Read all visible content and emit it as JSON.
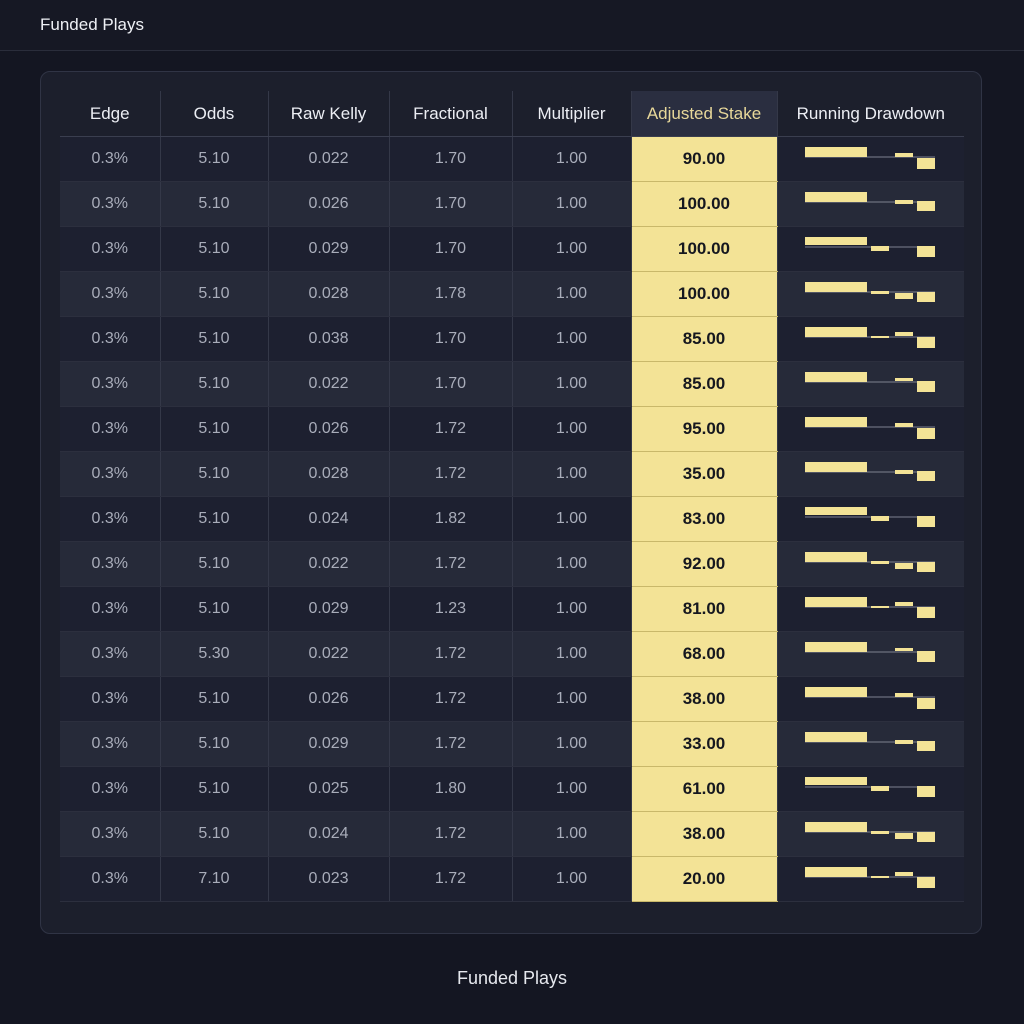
{
  "header": {
    "title": "Funded Plays"
  },
  "footer": {
    "caption": "Funded Plays"
  },
  "colors": {
    "accent": "#f3e396",
    "background": "#141622",
    "panel": "#1c1f2c"
  },
  "table": {
    "columns": [
      "Edge",
      "Odds",
      "Raw Kelly",
      "Fractional",
      "Multiplier",
      "Adjusted Stake",
      "Running Drawdown"
    ],
    "rows": [
      {
        "edge": "0.3%",
        "odds": "5.10",
        "raw_kelly": "0.022",
        "fractional": "1.70",
        "multiplier": "1.00",
        "stake": "90.00"
      },
      {
        "edge": "0.3%",
        "odds": "5.10",
        "raw_kelly": "0.026",
        "fractional": "1.70",
        "multiplier": "1.00",
        "stake": "100.00"
      },
      {
        "edge": "0.3%",
        "odds": "5.10",
        "raw_kelly": "0.029",
        "fractional": "1.70",
        "multiplier": "1.00",
        "stake": "100.00"
      },
      {
        "edge": "0.3%",
        "odds": "5.10",
        "raw_kelly": "0.028",
        "fractional": "1.78",
        "multiplier": "1.00",
        "stake": "100.00"
      },
      {
        "edge": "0.3%",
        "odds": "5.10",
        "raw_kelly": "0.038",
        "fractional": "1.70",
        "multiplier": "1.00",
        "stake": "85.00"
      },
      {
        "edge": "0.3%",
        "odds": "5.10",
        "raw_kelly": "0.022",
        "fractional": "1.70",
        "multiplier": "1.00",
        "stake": "85.00"
      },
      {
        "edge": "0.3%",
        "odds": "5.10",
        "raw_kelly": "0.026",
        "fractional": "1.72",
        "multiplier": "1.00",
        "stake": "95.00"
      },
      {
        "edge": "0.3%",
        "odds": "5.10",
        "raw_kelly": "0.028",
        "fractional": "1.72",
        "multiplier": "1.00",
        "stake": "35.00"
      },
      {
        "edge": "0.3%",
        "odds": "5.10",
        "raw_kelly": "0.024",
        "fractional": "1.82",
        "multiplier": "1.00",
        "stake": "83.00"
      },
      {
        "edge": "0.3%",
        "odds": "5.10",
        "raw_kelly": "0.022",
        "fractional": "1.72",
        "multiplier": "1.00",
        "stake": "92.00"
      },
      {
        "edge": "0.3%",
        "odds": "5.10",
        "raw_kelly": "0.029",
        "fractional": "1.23",
        "multiplier": "1.00",
        "stake": "81.00"
      },
      {
        "edge": "0.3%",
        "odds": "5.30",
        "raw_kelly": "0.022",
        "fractional": "1.72",
        "multiplier": "1.00",
        "stake": "68.00"
      },
      {
        "edge": "0.3%",
        "odds": "5.10",
        "raw_kelly": "0.026",
        "fractional": "1.72",
        "multiplier": "1.00",
        "stake": "38.00"
      },
      {
        "edge": "0.3%",
        "odds": "5.10",
        "raw_kelly": "0.029",
        "fractional": "1.72",
        "multiplier": "1.00",
        "stake": "33.00"
      },
      {
        "edge": "0.3%",
        "odds": "5.10",
        "raw_kelly": "0.025",
        "fractional": "1.80",
        "multiplier": "1.00",
        "stake": "61.00"
      },
      {
        "edge": "0.3%",
        "odds": "5.10",
        "raw_kelly": "0.024",
        "fractional": "1.72",
        "multiplier": "1.00",
        "stake": "38.00"
      },
      {
        "edge": "0.3%",
        "odds": "7.10",
        "raw_kelly": "0.023",
        "fractional": "1.72",
        "multiplier": "1.00",
        "stake": "20.00"
      }
    ]
  }
}
